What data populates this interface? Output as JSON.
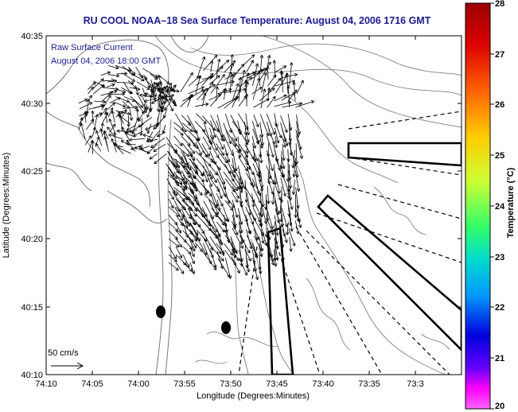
{
  "title": "RU COOL  NOAA–18  Sea Surface Temperature:  August 04, 2006 1716 GMT",
  "legend": {
    "line1": "Raw Surface Current",
    "line2": "August 04, 2006 18:00 GMT"
  },
  "scale_label": "50 cm/s",
  "x_axis": {
    "label": "Longitude (Degrees:Minutes)",
    "ticks": [
      "74:10",
      "74:05",
      "74:00",
      "73:55",
      "73:50",
      "73:45",
      "73:40",
      "73:35",
      "73:3"
    ]
  },
  "y_axis": {
    "label": "Latitude (Degrees:Minutes)",
    "ticks": [
      "40:35",
      "40:30",
      "40:25",
      "40:20",
      "40:15",
      "40:10"
    ]
  },
  "colorbar": {
    "label": "Temperature (°C)",
    "ticks": [
      "28",
      "27",
      "26",
      "25",
      "24",
      "23",
      "22",
      "21",
      "20"
    ],
    "stops": [
      "#990000",
      "#dd0000",
      "#ff6600",
      "#ffcc00",
      "#ccff33",
      "#33ff66",
      "#00ddcc",
      "#0099ff",
      "#0000dd",
      "#6600ff",
      "#ff00ff",
      "#ff66ff"
    ]
  }
}
